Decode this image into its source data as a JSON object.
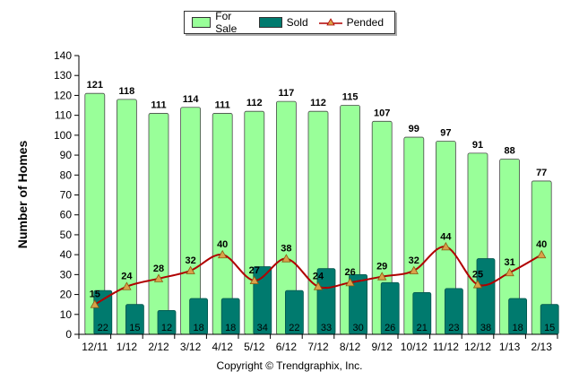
{
  "chart_data": {
    "type": "bar",
    "ylabel": "Number of Homes",
    "ylim": [
      0,
      140
    ],
    "yticks": [
      0,
      10,
      20,
      30,
      40,
      50,
      60,
      70,
      80,
      90,
      100,
      110,
      120,
      130,
      140
    ],
    "categories": [
      "12/11",
      "1/12",
      "2/12",
      "3/12",
      "4/12",
      "5/12",
      "6/12",
      "7/12",
      "8/12",
      "9/12",
      "10/12",
      "11/12",
      "12/12",
      "1/13",
      "2/13"
    ],
    "series": [
      {
        "name": "For Sale",
        "type": "bar",
        "color": "#99ff99",
        "values": [
          121,
          118,
          111,
          114,
          111,
          112,
          117,
          112,
          115,
          107,
          99,
          97,
          91,
          88,
          77
        ]
      },
      {
        "name": "Sold",
        "type": "bar",
        "color": "#007a6e",
        "values": [
          22,
          15,
          12,
          18,
          18,
          34,
          22,
          33,
          30,
          26,
          21,
          23,
          38,
          18,
          15
        ]
      },
      {
        "name": "Pended",
        "type": "line",
        "color": "#b00000",
        "marker_color": "#d9a14a",
        "values": [
          15,
          24,
          28,
          32,
          40,
          27,
          38,
          24,
          26,
          29,
          32,
          44,
          25,
          31,
          40
        ]
      }
    ],
    "legend_position": "top-center",
    "grid": false
  },
  "footer": {
    "text": "Copyright © Trendgraphix, Inc."
  }
}
